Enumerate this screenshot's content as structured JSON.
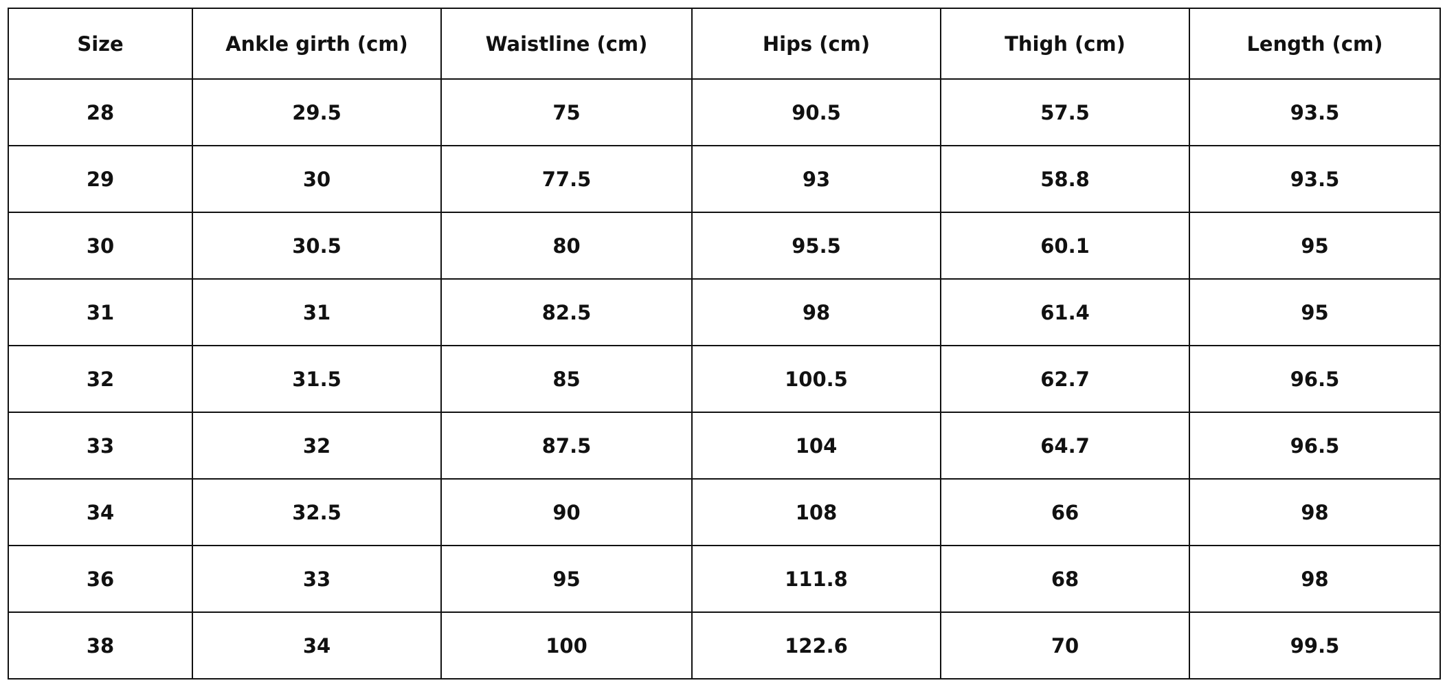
{
  "table": {
    "header": [
      "Size",
      "Ankle girth (cm)",
      "Waistline (cm)",
      "Hips (cm)",
      "Thigh (cm)",
      "Length (cm)"
    ],
    "rows": [
      [
        28,
        29.5,
        75,
        90.5,
        57.5,
        93.5
      ],
      [
        29,
        30,
        77.5,
        93,
        58.8,
        93.5
      ],
      [
        30,
        30.5,
        80,
        95.5,
        60.1,
        95
      ],
      [
        31,
        31,
        82.5,
        98,
        61.4,
        95
      ],
      [
        32,
        31.5,
        85,
        100.5,
        62.7,
        96.5
      ],
      [
        33,
        32,
        87.5,
        104,
        64.7,
        96.5
      ],
      [
        34,
        32.5,
        90,
        108,
        66,
        98
      ],
      [
        36,
        33,
        95,
        111.8,
        68,
        98
      ],
      [
        38,
        34,
        100,
        122.6,
        70,
        99.5
      ]
    ]
  }
}
